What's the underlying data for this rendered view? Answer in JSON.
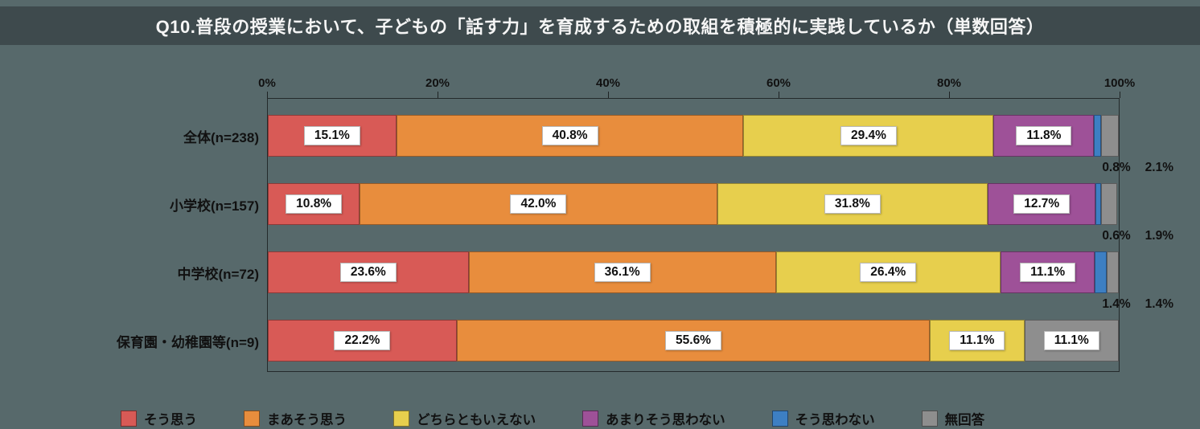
{
  "title": "Q10.普段の授業において、子どもの「話す力」を育成するための取組を積極的に実践しているか（単数回答）",
  "colors": {
    "page_background": "#57696b",
    "title_bar_background": "#3e4a4d",
    "title_text": "#f5f5f5",
    "axis_text": "#111111",
    "value_box_background": "#ffffff"
  },
  "chart_data": {
    "type": "bar",
    "orientation": "horizontal",
    "stacked": true,
    "unit": "%",
    "x_axis": {
      "ticks": [
        "0%",
        "20%",
        "40%",
        "60%",
        "80%",
        "100%"
      ],
      "range": [
        0,
        100
      ]
    },
    "categories": [
      "全体(n=238)",
      "小学校(n=157)",
      "中学校(n=72)",
      "保育園・幼稚園等(n=9)"
    ],
    "series": [
      {
        "name": "そう思う",
        "color": "#d85a56",
        "values": [
          15.1,
          10.8,
          23.6,
          22.2
        ]
      },
      {
        "name": "まあそう思う",
        "color": "#e88d3d",
        "values": [
          40.8,
          42.0,
          36.1,
          55.6
        ]
      },
      {
        "name": "どちらともいえない",
        "color": "#e7cf4d",
        "values": [
          29.4,
          31.8,
          26.4,
          11.1
        ]
      },
      {
        "name": "あまりそう思わない",
        "color": "#9e5198",
        "values": [
          11.8,
          12.7,
          11.1,
          0
        ]
      },
      {
        "name": "そう思わない",
        "color": "#3d7fc3",
        "values": [
          0.8,
          0.6,
          1.4,
          0
        ]
      },
      {
        "name": "無回答",
        "color": "#8e8e8e",
        "values": [
          2.1,
          1.9,
          1.4,
          11.1
        ]
      }
    ],
    "value_label_format": "0.0%",
    "inside_label_min_percent": 5,
    "grid": false,
    "legend_position": "bottom"
  }
}
